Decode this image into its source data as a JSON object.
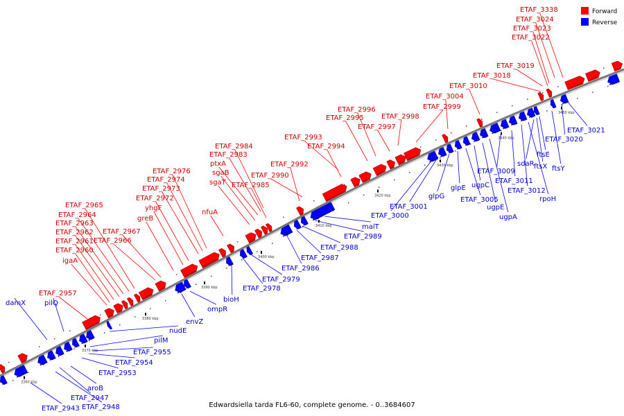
{
  "caption": "Edwardsiella tarda FL6-60, complete genome. - 0..3684607",
  "legend": [
    {
      "label": "Forward",
      "color": "#ff0000"
    },
    {
      "label": "Reverse",
      "color": "#0000ff"
    }
  ],
  "colors": {
    "forward": "#ff0000",
    "forward_dark": "#b80000",
    "reverse": "#0000ff",
    "reverse_dark": "#0000a8",
    "backbone": "#888888",
    "label_forward": "#cc0000",
    "label_reverse": "#0000cc"
  },
  "ticks": [
    "3360 kbp",
    "3370 kbp",
    "3380 kbp",
    "3390 kbp",
    "3400 kbp",
    "3410 kbp",
    "3420 kbp",
    "3430 kbp",
    "3440 kbp",
    "3450 kbp"
  ],
  "forward_genes": [
    "ETAF_3338",
    "ETAF_3024",
    "ETAF_3023",
    "ETAF_3022",
    "ETAF_3019",
    "ETAF_3018",
    "ETAF_3010",
    "ETAF_3004",
    "ETAF_2999",
    "ETAF_2998",
    "ETAF_2997",
    "ETAF_2996",
    "ETAF_2995",
    "ETAF_2994",
    "ETAF_2993",
    "ETAF_2992",
    "ETAF_2990",
    "ETAF_2985",
    "ETAF_2984",
    "ETAF_2983",
    "ptxA",
    "sgaB",
    "sgaT",
    "nfuA",
    "ETAF_2976",
    "ETAF_2974",
    "ETAF_2973",
    "ETAF_2972",
    "yhgF",
    "greB",
    "ETAF_2967",
    "ETAF_2966",
    "ETAF_2965",
    "ETAF_2964",
    "ETAF_2963",
    "ETAF_2962",
    "ETAF_2961",
    "ETAF_2960",
    "igaA",
    "ETAF_2957"
  ],
  "reverse_genes": [
    "damX",
    "pilQ",
    "nudE",
    "pilM",
    "ETAF_2955",
    "ETAF_2954",
    "ETAF_2953",
    "aroB",
    "ETAF_2947",
    "ETAF_2948",
    "ETAF_2943",
    "envZ",
    "ompR",
    "bioH",
    "ETAF_2978",
    "ETAF_2979",
    "ETAF_2986",
    "ETAF_2987",
    "ETAF_2988",
    "ETAF_2989",
    "malT",
    "ETAF_3000",
    "ETAF_3001",
    "glpG",
    "glpE",
    "ETAF_3005",
    "ugpC",
    "ugpE",
    "ugpA",
    "ETAF_3009",
    "ETAF_3011",
    "ETAF_3012",
    "rpoH",
    "sdaR",
    "ftsX",
    "ftsE",
    "ftsY",
    "ETAF_3020",
    "ETAF_3021"
  ]
}
